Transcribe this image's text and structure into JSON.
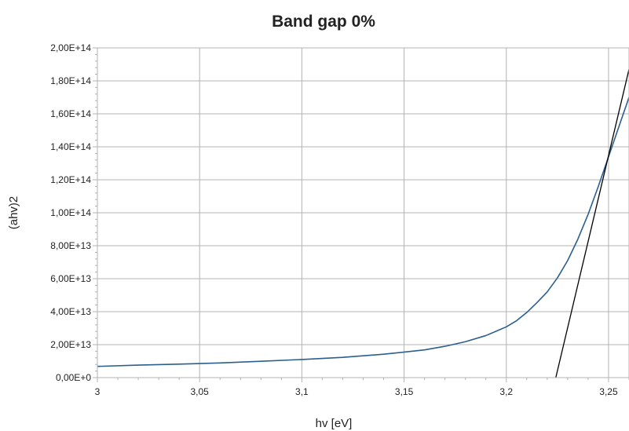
{
  "chart_data": {
    "type": "line",
    "title": "Band gap 0%",
    "xlabel": "hv [eV]",
    "ylabel": "(ahv)2",
    "xlim": [
      3.0,
      3.26
    ],
    "ylim": [
      0,
      200000000000000.0
    ],
    "grid": true,
    "legend": "none",
    "x_ticks": [
      3.0,
      3.05,
      3.1,
      3.15,
      3.2,
      3.25
    ],
    "x_tick_labels": [
      "3",
      "3,05",
      "3,1",
      "3,15",
      "3,2",
      "3,25"
    ],
    "y_ticks": [
      0,
      20000000000000.0,
      40000000000000.0,
      60000000000000.0,
      80000000000000.0,
      100000000000000.0,
      120000000000000.0,
      140000000000000.0,
      160000000000000.0,
      180000000000000.0,
      200000000000000.0
    ],
    "y_tick_labels": [
      "0,00E+0",
      "2,00E+13",
      "4,00E+13",
      "6,00E+13",
      "8,00E+13",
      "1,00E+14",
      "1,20E+14",
      "1,40E+14",
      "1,60E+14",
      "1,80E+14",
      "2,00E+14"
    ],
    "series": [
      {
        "color": "#2a5f8f",
        "x": [
          3.0,
          3.02,
          3.04,
          3.06,
          3.08,
          3.1,
          3.12,
          3.14,
          3.16,
          3.17,
          3.18,
          3.19,
          3.2,
          3.205,
          3.21,
          3.215,
          3.22,
          3.225,
          3.23,
          3.235,
          3.24,
          3.245,
          3.25,
          3.255,
          3.26
        ],
        "y": [
          6800000000000.0,
          7600000000000.0,
          8200000000000.0,
          8900000000000.0,
          9900000000000.0,
          11000000000000.0,
          12300000000000.0,
          14200000000000.0,
          16800000000000.0,
          19000000000000.0,
          21800000000000.0,
          25500000000000.0,
          30800000000000.0,
          34500000000000.0,
          39500000000000.0,
          45500000000000.0,
          52000000000000.0,
          60500000000000.0,
          71000000000000.0,
          84000000000000.0,
          99000000000000.0,
          116000000000000.0,
          134000000000000.0,
          152000000000000.0,
          170000000000000.0
        ]
      },
      {
        "color": "#000000",
        "x": [
          3.2242,
          3.26
        ],
        "y": [
          0,
          187000000000000.0
        ]
      }
    ]
  }
}
